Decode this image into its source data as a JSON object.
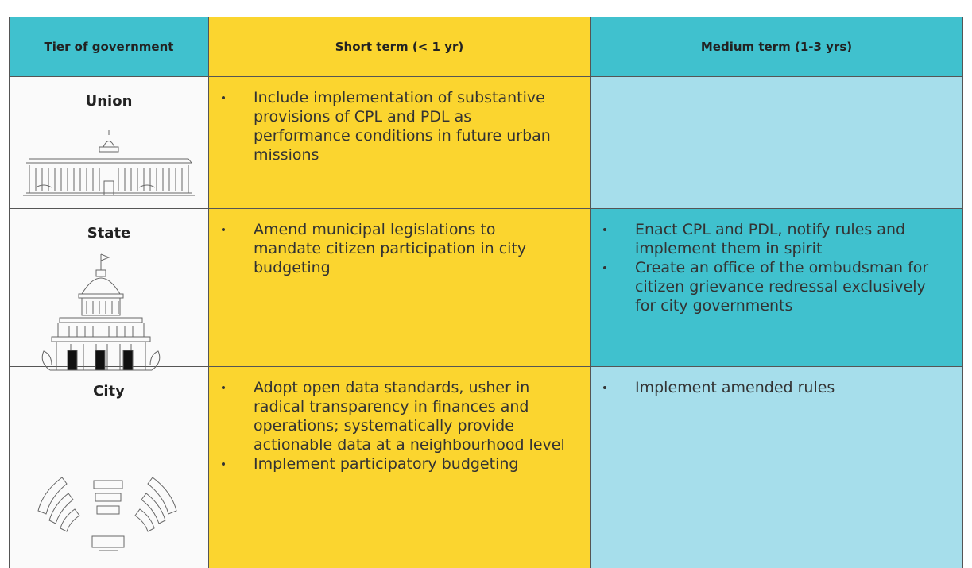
{
  "header": {
    "columns": [
      "Tier of government",
      "Short term (< 1 yr)",
      "Medium term (1-3 yrs)"
    ]
  },
  "rows": [
    {
      "tier": "Union",
      "short_term": [
        "Include implementation of substantive provisions of CPL and PDL as performance conditions in future urban missions"
      ],
      "medium_term": []
    },
    {
      "tier": "State",
      "short_term": [
        "Amend municipal legislations to mandate citizen participation in city budgeting"
      ],
      "medium_term": [
        "Enact CPL and PDL, notify rules and implement them in spirit",
        "Create an office of the ombudsman for citizen grievance redressal exclusively for city governments"
      ]
    },
    {
      "tier": "City",
      "short_term": [
        "Adopt open data standards, usher in radical transparency in finances and operations; systematically provide actionable data at a neighbourhood level",
        "Implement participatory budgeting"
      ],
      "medium_term": [
        "Implement amended rules"
      ]
    }
  ]
}
